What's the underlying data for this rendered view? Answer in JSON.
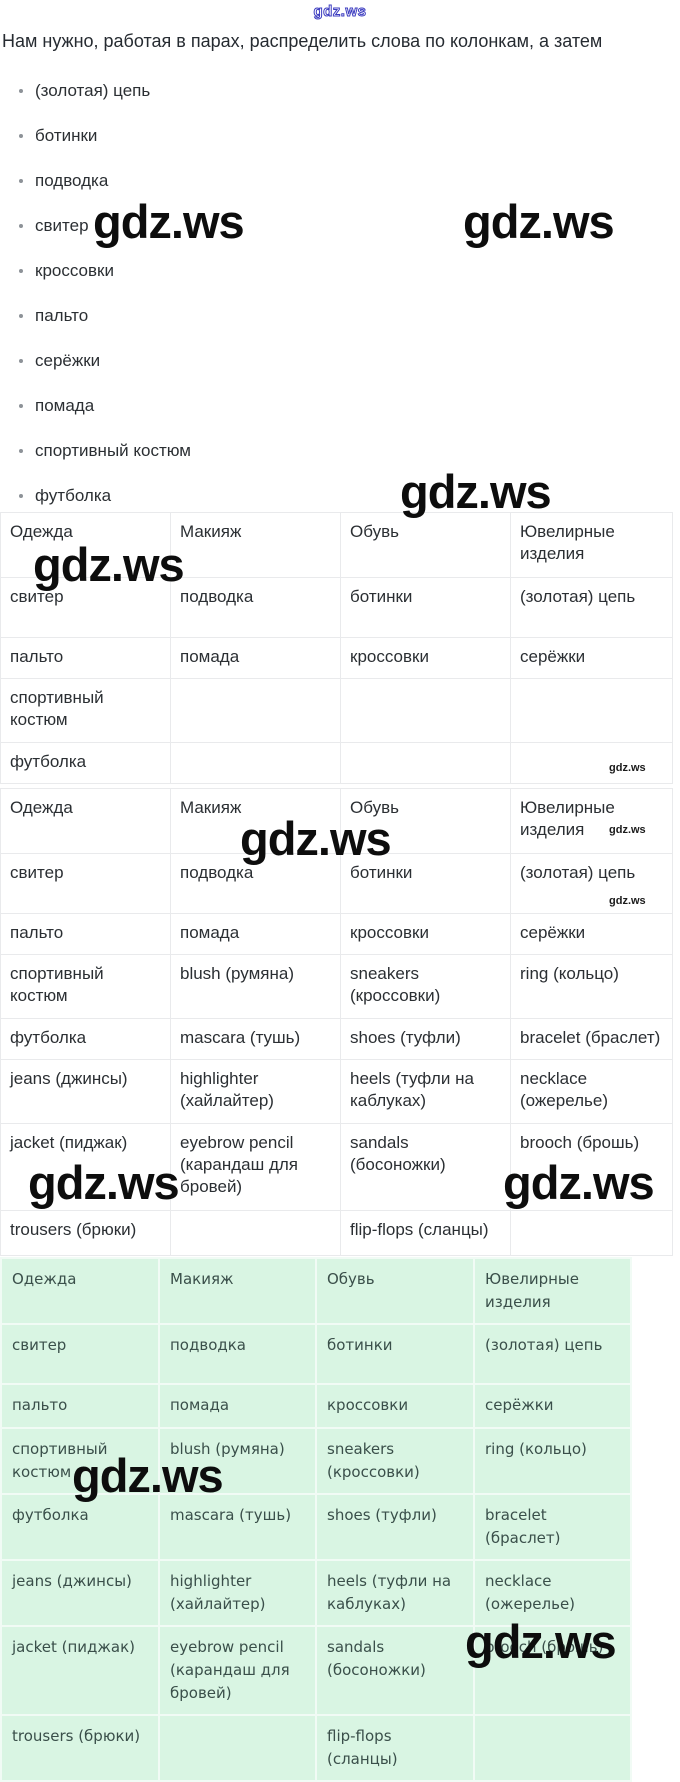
{
  "site_watermark": "gdz.ws",
  "intro": "Нам нужно, работая в парах, распределить слова по колонкам, а затем",
  "word_list": [
    "(золотая) цепь",
    "ботинки",
    "подводка",
    "свитер",
    "кроссовки",
    "пальто",
    "серёжки",
    "помада",
    "спортивный костюм",
    "футболка"
  ],
  "columns": [
    "Одежда",
    "Макияж",
    "Обувь",
    "Ювелирные изделия"
  ],
  "tables": [
    {
      "name": "distribution-blank",
      "rows": [
        [
          "свитер",
          "подводка",
          "ботинки",
          "(золотая) цепь"
        ],
        [
          "пальто",
          "помада",
          "кроссовки",
          "серёжки"
        ],
        [
          "спортивный костюм",
          "",
          "",
          ""
        ],
        [
          "футболка",
          "",
          "",
          ""
        ]
      ]
    },
    {
      "name": "distribution-filled-white",
      "rows": [
        [
          "свитер",
          "подводка",
          "ботинки",
          "(золотая) цепь"
        ],
        [
          "пальто",
          "помада",
          "кроссовки",
          "серёжки"
        ],
        [
          "спортивный костюм",
          "blush (румяна)",
          "sneakers (кроссовки)",
          "ring (кольцо)"
        ],
        [
          "футболка",
          "mascara (тушь)",
          "shoes (туфли)",
          "bracelet (браслет)"
        ],
        [
          "jeans (джинсы)",
          "highlighter (хайлайтер)",
          "heels (туфли на каблуках)",
          "necklace (ожерелье)"
        ],
        [
          "jacket (пиджак)",
          "eyebrow pencil (карандаш для бровей)",
          "sandals (босоножки)",
          "brooch (брошь)"
        ],
        [
          "trousers (брюки)",
          "",
          "flip-flops (сланцы)",
          ""
        ]
      ]
    },
    {
      "name": "distribution-filled-green",
      "rows": [
        [
          "свитер",
          "подводка",
          "ботинки",
          "(золотая) цепь"
        ],
        [
          "пальто",
          "помада",
          "кроссовки",
          "серёжки"
        ],
        [
          "спортивный костюм",
          "blush (румяна)",
          "sneakers (кроссовки)",
          "ring (кольцо)"
        ],
        [
          "футболка",
          "mascara (тушь)",
          "shoes (туфли)",
          "bracelet (браслет)"
        ],
        [
          "jeans (джинсы)",
          "highlighter (хайлайтер)",
          "heels (туфли на каблуках)",
          "necklace (ожерелье)"
        ],
        [
          "jacket (пиджак)",
          "eyebrow pencil (карандаш для бровей)",
          "sandals (босоножки)",
          "brooch (брошь)"
        ],
        [
          "trousers (брюки)",
          "",
          "flip-flops (сланцы)",
          ""
        ]
      ]
    }
  ],
  "colors": {
    "table_highlight_green": "#d9f5e3",
    "watermark_blue": "#3c3cc0",
    "watermark_black": "#0d0d0d"
  }
}
